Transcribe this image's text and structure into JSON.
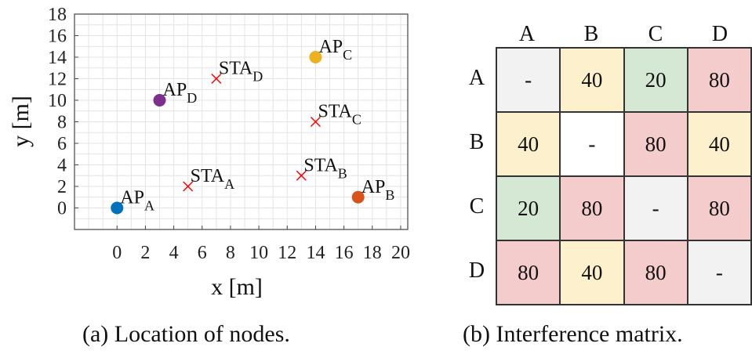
{
  "chart_data": [
    {
      "type": "scatter",
      "title": "",
      "xlabel": "x [m]",
      "ylabel": "y [m]",
      "xlim": [
        -3,
        20.5
      ],
      "ylim": [
        -2,
        18
      ],
      "xticks": [
        0,
        2,
        4,
        6,
        8,
        10,
        12,
        14,
        16,
        18,
        20
      ],
      "yticks": [
        0,
        2,
        4,
        6,
        8,
        10,
        12,
        14,
        16,
        18
      ],
      "grid": true,
      "access_points": [
        {
          "name": "AP",
          "sub": "A",
          "x": 0,
          "y": 0,
          "color": "#0072bd"
        },
        {
          "name": "AP",
          "sub": "B",
          "x": 17,
          "y": 1,
          "color": "#d95319"
        },
        {
          "name": "AP",
          "sub": "C",
          "x": 14,
          "y": 14,
          "color": "#edb120"
        },
        {
          "name": "AP",
          "sub": "D",
          "x": 3,
          "y": 10,
          "color": "#7e2f8e"
        }
      ],
      "stations": [
        {
          "name": "STA",
          "sub": "A",
          "x": 5,
          "y": 2
        },
        {
          "name": "STA",
          "sub": "B",
          "x": 13,
          "y": 3
        },
        {
          "name": "STA",
          "sub": "C",
          "x": 14,
          "y": 8
        },
        {
          "name": "STA",
          "sub": "D",
          "x": 7,
          "y": 12
        }
      ],
      "station_color": "#ff0000",
      "caption": "(a) Location of nodes."
    },
    {
      "type": "table",
      "columns": [
        "A",
        "B",
        "C",
        "D"
      ],
      "rows": [
        {
          "label": "A",
          "cells": [
            "-",
            "40",
            "20",
            "80"
          ],
          "colors": [
            "#f2f2f2",
            "#fcf1cc",
            "#d5e8d4",
            "#f4cccc"
          ]
        },
        {
          "label": "B",
          "cells": [
            "40",
            "-",
            "80",
            "40"
          ],
          "colors": [
            "#fcf1cc",
            "#ffffff",
            "#f4cccc",
            "#fcf1cc"
          ]
        },
        {
          "label": "C",
          "cells": [
            "20",
            "80",
            "-",
            "80"
          ],
          "colors": [
            "#d5e8d4",
            "#f4cccc",
            "#f2f2f2",
            "#f4cccc"
          ]
        },
        {
          "label": "D",
          "cells": [
            "80",
            "40",
            "80",
            "-"
          ],
          "colors": [
            "#f4cccc",
            "#fcf1cc",
            "#f4cccc",
            "#f2f2f2"
          ]
        }
      ],
      "caption": "(b) Interference matrix."
    }
  ]
}
